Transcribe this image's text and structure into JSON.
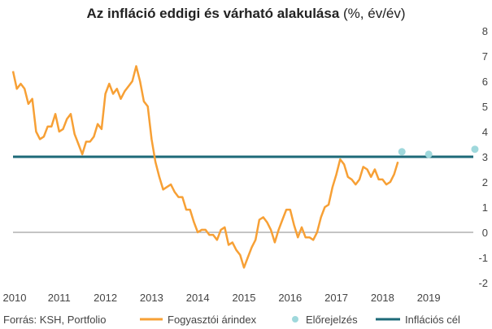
{
  "chart_data": {
    "type": "line",
    "title_main": "Az infláció eddigi és várható alakulása",
    "title_suffix": " (%, év/év)",
    "source": "Forrás: KSH, Portfolio",
    "x_ticks": [
      "2010",
      "2011",
      "2012",
      "2013",
      "2014",
      "2015",
      "2016",
      "2017",
      "2018",
      "2019"
    ],
    "y_ticks": [
      "-2",
      "-1",
      "0",
      "1",
      "2",
      "3",
      "4",
      "5",
      "6",
      "7",
      "8"
    ],
    "xlim": [
      2010,
      2020.3
    ],
    "ylim": [
      -2,
      8
    ],
    "colors": {
      "cpi": "#f7a035",
      "forecast": "#9fd8dc",
      "target": "#1d6a78",
      "zero_line": "#888888"
    },
    "series": [
      {
        "name": "Fogyasztói árindex",
        "kind": "line",
        "points": [
          [
            2010.0,
            6.4
          ],
          [
            2010.083,
            5.7
          ],
          [
            2010.167,
            5.9
          ],
          [
            2010.25,
            5.7
          ],
          [
            2010.333,
            5.1
          ],
          [
            2010.417,
            5.3
          ],
          [
            2010.5,
            4.0
          ],
          [
            2010.583,
            3.7
          ],
          [
            2010.667,
            3.8
          ],
          [
            2010.75,
            4.2
          ],
          [
            2010.833,
            4.2
          ],
          [
            2010.917,
            4.7
          ],
          [
            2011.0,
            4.0
          ],
          [
            2011.083,
            4.1
          ],
          [
            2011.167,
            4.5
          ],
          [
            2011.25,
            4.7
          ],
          [
            2011.333,
            3.9
          ],
          [
            2011.417,
            3.5
          ],
          [
            2011.5,
            3.1
          ],
          [
            2011.583,
            3.6
          ],
          [
            2011.667,
            3.6
          ],
          [
            2011.75,
            3.8
          ],
          [
            2011.833,
            4.3
          ],
          [
            2011.917,
            4.1
          ],
          [
            2012.0,
            5.5
          ],
          [
            2012.083,
            5.9
          ],
          [
            2012.167,
            5.5
          ],
          [
            2012.25,
            5.7
          ],
          [
            2012.333,
            5.3
          ],
          [
            2012.417,
            5.6
          ],
          [
            2012.5,
            5.8
          ],
          [
            2012.583,
            6.0
          ],
          [
            2012.667,
            6.6
          ],
          [
            2012.75,
            6.0
          ],
          [
            2012.833,
            5.2
          ],
          [
            2012.917,
            5.0
          ],
          [
            2013.0,
            3.7
          ],
          [
            2013.083,
            2.8
          ],
          [
            2013.167,
            2.2
          ],
          [
            2013.25,
            1.7
          ],
          [
            2013.333,
            1.8
          ],
          [
            2013.417,
            1.9
          ],
          [
            2013.5,
            1.6
          ],
          [
            2013.583,
            1.4
          ],
          [
            2013.667,
            1.4
          ],
          [
            2013.75,
            0.9
          ],
          [
            2013.833,
            0.9
          ],
          [
            2013.917,
            0.4
          ],
          [
            2014.0,
            0.0
          ],
          [
            2014.083,
            0.1
          ],
          [
            2014.167,
            0.1
          ],
          [
            2014.25,
            -0.1
          ],
          [
            2014.333,
            -0.1
          ],
          [
            2014.417,
            -0.3
          ],
          [
            2014.5,
            0.1
          ],
          [
            2014.583,
            0.2
          ],
          [
            2014.667,
            -0.5
          ],
          [
            2014.75,
            -0.4
          ],
          [
            2014.833,
            -0.7
          ],
          [
            2014.917,
            -0.9
          ],
          [
            2015.0,
            -1.4
          ],
          [
            2015.083,
            -1.0
          ],
          [
            2015.167,
            -0.6
          ],
          [
            2015.25,
            -0.3
          ],
          [
            2015.333,
            0.5
          ],
          [
            2015.417,
            0.6
          ],
          [
            2015.5,
            0.4
          ],
          [
            2015.583,
            0.1
          ],
          [
            2015.667,
            -0.4
          ],
          [
            2015.75,
            0.1
          ],
          [
            2015.833,
            0.5
          ],
          [
            2015.917,
            0.9
          ],
          [
            2016.0,
            0.9
          ],
          [
            2016.083,
            0.3
          ],
          [
            2016.167,
            -0.2
          ],
          [
            2016.25,
            0.2
          ],
          [
            2016.333,
            -0.2
          ],
          [
            2016.417,
            -0.2
          ],
          [
            2016.5,
            -0.3
          ],
          [
            2016.583,
            0.0
          ],
          [
            2016.667,
            0.6
          ],
          [
            2016.75,
            1.0
          ],
          [
            2016.833,
            1.1
          ],
          [
            2016.917,
            1.8
          ],
          [
            2017.0,
            2.3
          ],
          [
            2017.083,
            2.9
          ],
          [
            2017.167,
            2.7
          ],
          [
            2017.25,
            2.2
          ],
          [
            2017.333,
            2.1
          ],
          [
            2017.417,
            1.9
          ],
          [
            2017.5,
            2.1
          ],
          [
            2017.583,
            2.6
          ],
          [
            2017.667,
            2.5
          ],
          [
            2017.75,
            2.2
          ],
          [
            2017.833,
            2.5
          ],
          [
            2017.917,
            2.1
          ],
          [
            2018.0,
            2.1
          ],
          [
            2018.083,
            1.9
          ],
          [
            2018.167,
            2.0
          ],
          [
            2018.25,
            2.3
          ],
          [
            2018.333,
            2.8
          ]
        ]
      },
      {
        "name": "Előrejelzés",
        "kind": "scatter",
        "points": [
          [
            2018.42,
            3.2
          ],
          [
            2019.0,
            3.1
          ],
          [
            2020.0,
            3.3
          ]
        ]
      },
      {
        "name": "Inflációs cél",
        "kind": "hline",
        "value": 3
      }
    ]
  }
}
